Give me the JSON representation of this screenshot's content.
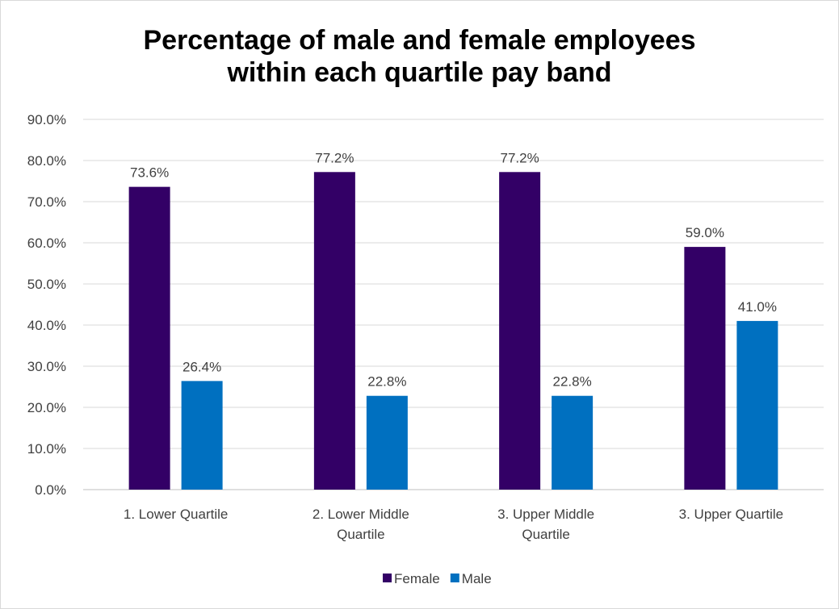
{
  "chart_data": {
    "type": "bar",
    "title_lines": [
      "Percentage of male and female employees",
      "within each quartile pay band"
    ],
    "categories": [
      [
        "1. Lower Quartile"
      ],
      [
        "2. Lower Middle",
        "Quartile"
      ],
      [
        "3. Upper Middle",
        "Quartile"
      ],
      [
        "3. Upper Quartile"
      ]
    ],
    "series": [
      {
        "name": "Female",
        "color": "#330066",
        "values": [
          73.6,
          77.2,
          77.2,
          59.0
        ],
        "labels": [
          "73.6%",
          "77.2%",
          "77.2%",
          "59.0%"
        ]
      },
      {
        "name": "Male",
        "color": "#0070c0",
        "values": [
          26.4,
          22.8,
          22.8,
          41.0
        ],
        "labels": [
          "26.4%",
          "22.8%",
          "22.8%",
          "41.0%"
        ]
      }
    ],
    "yticks": [
      "0.0%",
      "10.0%",
      "20.0%",
      "30.0%",
      "40.0%",
      "50.0%",
      "60.0%",
      "70.0%",
      "80.0%",
      "90.0%"
    ],
    "ylim": [
      0,
      90
    ],
    "grid": true,
    "legend_position": "bottom"
  }
}
